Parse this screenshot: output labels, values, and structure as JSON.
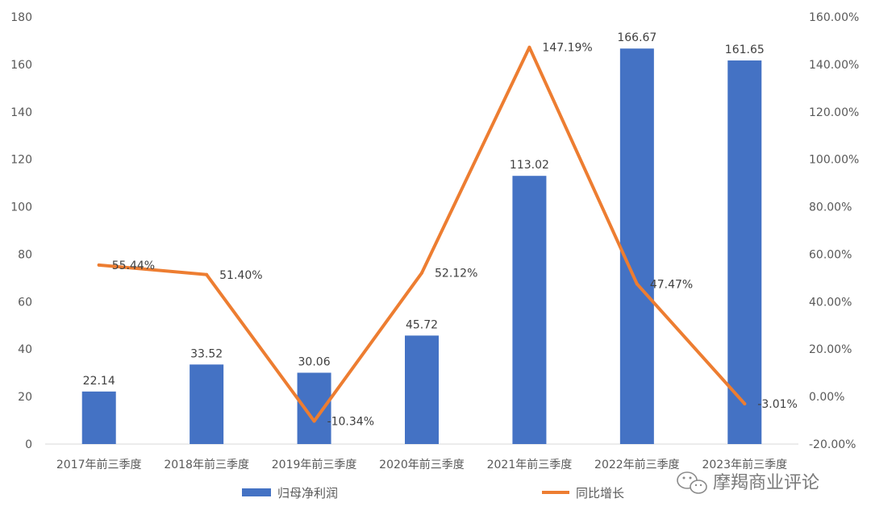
{
  "chart_data": {
    "type": "bar",
    "categories": [
      "2017年前三季度",
      "2018年前三季度",
      "2019年前三季度",
      "2020年前三季度",
      "2021年前三季度",
      "2022年前三季度",
      "2023年前三季度"
    ],
    "series": [
      {
        "name": "归母净利润",
        "type": "bar",
        "axis": "left",
        "color": "#4472C4",
        "values": [
          22.14,
          33.52,
          30.06,
          45.72,
          113.02,
          166.67,
          161.65
        ],
        "labels": [
          "22.14",
          "33.52",
          "30.06",
          "45.72",
          "113.02",
          "166.67",
          "161.65"
        ]
      },
      {
        "name": "同比增长",
        "type": "line",
        "axis": "right",
        "color": "#ED7D31",
        "values": [
          55.44,
          51.4,
          -10.34,
          52.12,
          147.19,
          47.47,
          -3.01
        ],
        "labels": [
          "55.44%",
          "51.40%",
          "-10.34%",
          "52.12%",
          "147.19%",
          "47.47%",
          "-3.01%"
        ]
      }
    ],
    "y_left": {
      "min": 0,
      "max": 180,
      "ticks": [
        "0",
        "20",
        "40",
        "60",
        "80",
        "100",
        "120",
        "140",
        "160",
        "180"
      ]
    },
    "y_right": {
      "min": -20,
      "max": 160,
      "ticks": [
        "-20.00%",
        "0.00%",
        "20.00%",
        "40.00%",
        "60.00%",
        "80.00%",
        "100.00%",
        "120.00%",
        "140.00%",
        "160.00%"
      ]
    },
    "grid": false,
    "legend": "bottom"
  },
  "watermark": {
    "text": "摩羯商业评论",
    "icon": "wechat-icon"
  }
}
